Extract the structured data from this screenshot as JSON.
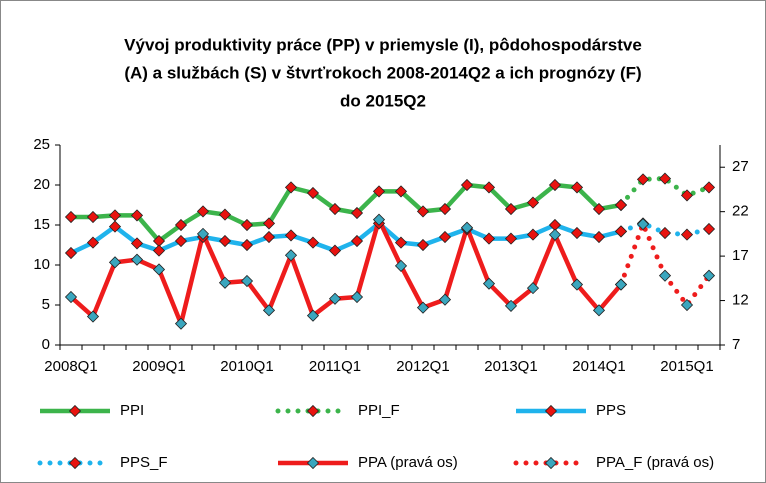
{
  "chart_data": {
    "type": "line",
    "title": [
      "Vývoj produktivity práce (PP) v priemysle (I), pôdohospodárstve",
      "(A) a službách (S) v štvrťrokoch 2008-2014Q2  a ich prognózy (F)",
      "do  2015Q2"
    ],
    "categories": [
      "2008Q1",
      null,
      null,
      null,
      "2009Q1",
      null,
      null,
      null,
      "2010Q1",
      null,
      null,
      null,
      "2011Q1",
      null,
      null,
      null,
      "2012Q1",
      null,
      null,
      null,
      "2013Q1",
      null,
      null,
      null,
      "2014Q1",
      null,
      null,
      null,
      "2015Q1",
      null
    ],
    "ylim": [
      0,
      25
    ],
    "yticks": [
      0,
      5,
      10,
      15,
      20,
      25
    ],
    "y2lim": [
      7,
      29.5
    ],
    "y2ticks": [
      7,
      12,
      17,
      22,
      27
    ],
    "series": [
      {
        "name": "PPI",
        "color": "#3cb44b",
        "marker_color": "#e8130f",
        "dash": "solid",
        "values": [
          16,
          16,
          16.2,
          16.2,
          13,
          15,
          16.7,
          16.3,
          15,
          15.2,
          19.7,
          19,
          17,
          16.5,
          19.2,
          19.2,
          16.7,
          17,
          20,
          19.7,
          17,
          17.8,
          20,
          19.7,
          17,
          17.5,
          null,
          null,
          null,
          null
        ]
      },
      {
        "name": "PPI_F",
        "color": "#3cb44b",
        "marker_color": "#e8130f",
        "dash": "dotted",
        "values": [
          null,
          null,
          null,
          null,
          null,
          null,
          null,
          null,
          null,
          null,
          null,
          null,
          null,
          null,
          null,
          null,
          null,
          null,
          null,
          null,
          null,
          null,
          null,
          null,
          null,
          17.5,
          20.7,
          20.8,
          18.7,
          19.7
        ]
      },
      {
        "name": "PPS",
        "color": "#1fb3ec",
        "marker_color": "#e8130f",
        "dash": "solid",
        "values": [
          11.5,
          12.8,
          14.8,
          12.7,
          11.8,
          13,
          13.5,
          13,
          12.5,
          13.5,
          13.7,
          12.8,
          11.8,
          13,
          15.2,
          12.8,
          12.5,
          13.5,
          14.5,
          13.3,
          13.3,
          13.8,
          15,
          14,
          13.5,
          14.2,
          null,
          null,
          null,
          null
        ]
      },
      {
        "name": "PPS_F",
        "color": "#1fb3ec",
        "marker_color": "#e8130f",
        "dash": "dotted",
        "values": [
          null,
          null,
          null,
          null,
          null,
          null,
          null,
          null,
          null,
          null,
          null,
          null,
          null,
          null,
          null,
          null,
          null,
          null,
          null,
          null,
          null,
          null,
          null,
          null,
          null,
          14.2,
          15.2,
          14,
          13.8,
          14.5
        ]
      },
      {
        "name": "PPA (pravá os)",
        "color": "#ee1c1c",
        "marker_color": "#3aa6be",
        "dash": "solid",
        "axis": "y2",
        "values": [
          12.4,
          10.2,
          16.3,
          16.6,
          15.5,
          9.4,
          19.5,
          14,
          14.2,
          10.9,
          17.1,
          10.3,
          12.2,
          12.4,
          21.1,
          15.9,
          11.2,
          12.1,
          20.2,
          13.9,
          11.4,
          13.4,
          19.4,
          13.8,
          10.9,
          13.8,
          null,
          null,
          null,
          null
        ]
      },
      {
        "name": "PPA_F (pravá os)",
        "color": "#ee1c1c",
        "marker_color": "#3aa6be",
        "dash": "dotted",
        "axis": "y2",
        "values": [
          null,
          null,
          null,
          null,
          null,
          null,
          null,
          null,
          null,
          null,
          null,
          null,
          null,
          null,
          null,
          null,
          null,
          null,
          null,
          null,
          null,
          null,
          null,
          null,
          null,
          13.8,
          20.6,
          14.8,
          11.5,
          14.8
        ]
      }
    ]
  }
}
